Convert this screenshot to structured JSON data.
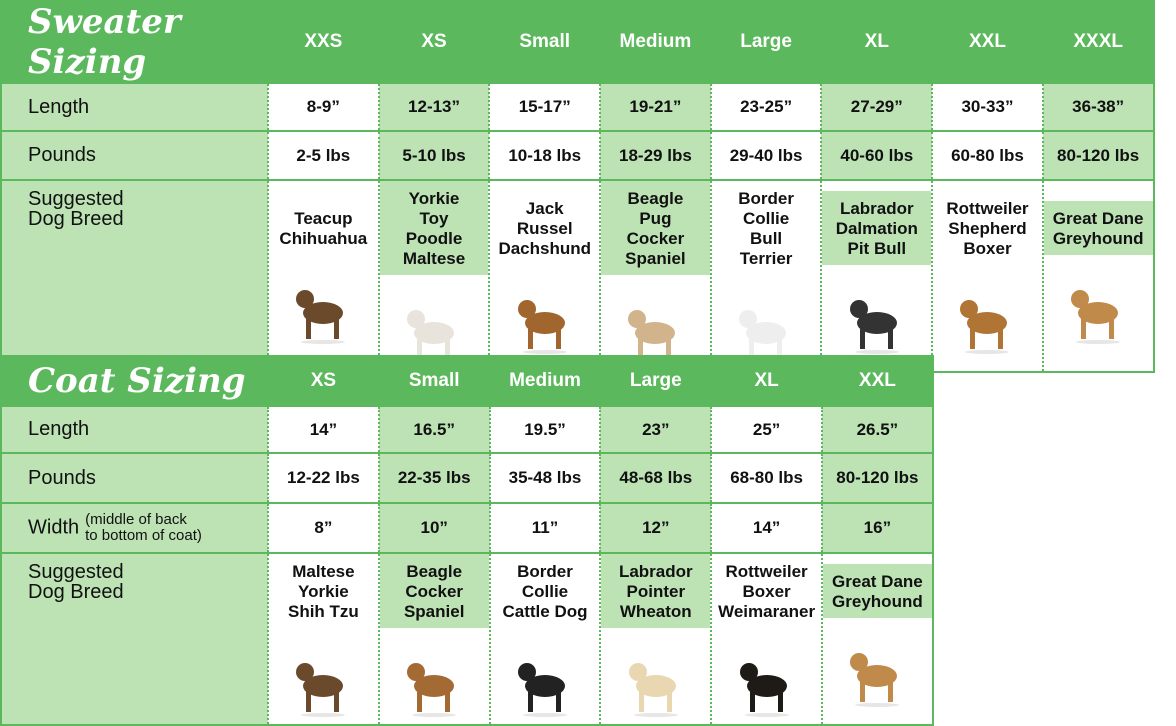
{
  "colors": {
    "header_green": "#5cb85c",
    "light_green": "#bde3b5"
  },
  "sweater": {
    "title": "Sweater Sizing",
    "sizes": [
      "XXS",
      "XS",
      "Small",
      "Medium",
      "Large",
      "XL",
      "XXL",
      "XXXL"
    ],
    "rows": [
      {
        "label": "Length",
        "values": [
          "8-9”",
          "12-13”",
          "15-17”",
          "19-21”",
          "23-25”",
          "27-29”",
          "30-33”",
          "36-38”"
        ]
      },
      {
        "label": "Pounds",
        "values": [
          "2-5 lbs",
          "5-10 lbs",
          "10-18 lbs",
          "18-29 lbs",
          "29-40 lbs",
          "40-60 lbs",
          "60-80 lbs",
          "80-120 lbs"
        ]
      }
    ],
    "breed_label": [
      "Suggested",
      "Dog Breed"
    ],
    "breeds": [
      [
        "Teacup",
        "Chihuahua"
      ],
      [
        "Yorkie",
        "Toy",
        "Poodle",
        "Maltese"
      ],
      [
        "Jack",
        "Russel",
        "Dachshund"
      ],
      [
        "Beagle",
        "Pug",
        "Cocker",
        "Spaniel"
      ],
      [
        "Border",
        "Collie",
        "Bull",
        "Terrier"
      ],
      [
        "Labrador",
        "Dalmation",
        "Pit Bull"
      ],
      [
        "Rottweiler",
        "Shepherd",
        "Boxer"
      ],
      [
        "Great Dane",
        "Greyhound"
      ]
    ],
    "photos": [
      "yorkie-photo",
      "poodle-photo",
      "dachshund-photo",
      "pug-photo",
      "bull-terrier-photo",
      "dalmatian-photo",
      "german-shepherd-photo",
      "great-dane-photo"
    ]
  },
  "coat": {
    "title": "Coat Sizing",
    "sizes": [
      "XS",
      "Small",
      "Medium",
      "Large",
      "XL",
      "XXL"
    ],
    "rows": [
      {
        "label": "Length",
        "values": [
          "14”",
          "16.5”",
          "19.5”",
          "23”",
          "25”",
          "26.5”"
        ]
      },
      {
        "label": "Pounds",
        "values": [
          "12-22 lbs",
          "22-35 lbs",
          "35-48 lbs",
          "48-68 lbs",
          "68-80 lbs",
          "80-120 lbs"
        ]
      },
      {
        "label": "Width",
        "note": [
          "(middle of back",
          "to bottom of coat)"
        ],
        "values": [
          "8”",
          "10”",
          "11”",
          "12”",
          "14”",
          "16”"
        ]
      }
    ],
    "breed_label": [
      "Suggested",
      "Dog Breed"
    ],
    "breeds": [
      [
        "Maltese",
        "Yorkie",
        "Shih Tzu"
      ],
      [
        "Beagle",
        "Cocker",
        "Spaniel"
      ],
      [
        "Border",
        "Collie",
        "Cattle Dog"
      ],
      [
        "Labrador",
        "Pointer",
        "Wheaton"
      ],
      [
        "Rottweiler",
        "Boxer",
        "Weimaraner"
      ],
      [
        "Great Dane",
        "Greyhound"
      ]
    ],
    "photos": [
      "yorkie-photo",
      "beagle-photo",
      "border-collie-photo",
      "labrador-photo",
      "rottweiler-photo",
      "great-dane-photo"
    ]
  }
}
